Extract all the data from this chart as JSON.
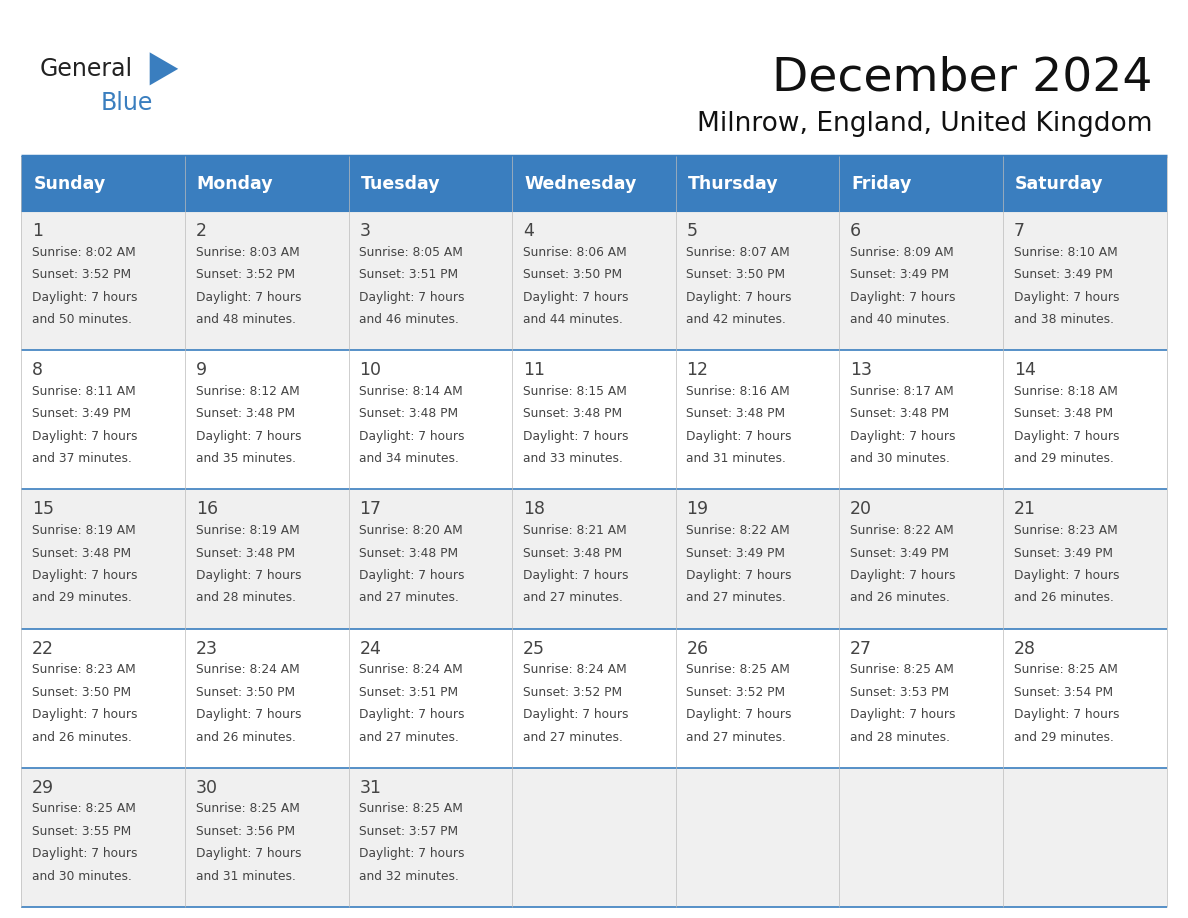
{
  "title": "December 2024",
  "subtitle": "Milnrow, England, United Kingdom",
  "days_of_week": [
    "Sunday",
    "Monday",
    "Tuesday",
    "Wednesday",
    "Thursday",
    "Friday",
    "Saturday"
  ],
  "header_bg": "#3a7ebf",
  "header_text_color": "#ffffff",
  "row_bg_odd": "#f0f0f0",
  "row_bg_even": "#ffffff",
  "border_color": "#3a7ebf",
  "text_color": "#444444",
  "title_color": "#111111",
  "logo_general_color": "#222222",
  "logo_blue_color": "#3a7ebf",
  "calendar_data": [
    {
      "day": 1,
      "col": 0,
      "row": 0,
      "sunrise": "8:02 AM",
      "sunset": "3:52 PM",
      "daylight_hours": 7,
      "daylight_minutes": 50
    },
    {
      "day": 2,
      "col": 1,
      "row": 0,
      "sunrise": "8:03 AM",
      "sunset": "3:52 PM",
      "daylight_hours": 7,
      "daylight_minutes": 48
    },
    {
      "day": 3,
      "col": 2,
      "row": 0,
      "sunrise": "8:05 AM",
      "sunset": "3:51 PM",
      "daylight_hours": 7,
      "daylight_minutes": 46
    },
    {
      "day": 4,
      "col": 3,
      "row": 0,
      "sunrise": "8:06 AM",
      "sunset": "3:50 PM",
      "daylight_hours": 7,
      "daylight_minutes": 44
    },
    {
      "day": 5,
      "col": 4,
      "row": 0,
      "sunrise": "8:07 AM",
      "sunset": "3:50 PM",
      "daylight_hours": 7,
      "daylight_minutes": 42
    },
    {
      "day": 6,
      "col": 5,
      "row": 0,
      "sunrise": "8:09 AM",
      "sunset": "3:49 PM",
      "daylight_hours": 7,
      "daylight_minutes": 40
    },
    {
      "day": 7,
      "col": 6,
      "row": 0,
      "sunrise": "8:10 AM",
      "sunset": "3:49 PM",
      "daylight_hours": 7,
      "daylight_minutes": 38
    },
    {
      "day": 8,
      "col": 0,
      "row": 1,
      "sunrise": "8:11 AM",
      "sunset": "3:49 PM",
      "daylight_hours": 7,
      "daylight_minutes": 37
    },
    {
      "day": 9,
      "col": 1,
      "row": 1,
      "sunrise": "8:12 AM",
      "sunset": "3:48 PM",
      "daylight_hours": 7,
      "daylight_minutes": 35
    },
    {
      "day": 10,
      "col": 2,
      "row": 1,
      "sunrise": "8:14 AM",
      "sunset": "3:48 PM",
      "daylight_hours": 7,
      "daylight_minutes": 34
    },
    {
      "day": 11,
      "col": 3,
      "row": 1,
      "sunrise": "8:15 AM",
      "sunset": "3:48 PM",
      "daylight_hours": 7,
      "daylight_minutes": 33
    },
    {
      "day": 12,
      "col": 4,
      "row": 1,
      "sunrise": "8:16 AM",
      "sunset": "3:48 PM",
      "daylight_hours": 7,
      "daylight_minutes": 31
    },
    {
      "day": 13,
      "col": 5,
      "row": 1,
      "sunrise": "8:17 AM",
      "sunset": "3:48 PM",
      "daylight_hours": 7,
      "daylight_minutes": 30
    },
    {
      "day": 14,
      "col": 6,
      "row": 1,
      "sunrise": "8:18 AM",
      "sunset": "3:48 PM",
      "daylight_hours": 7,
      "daylight_minutes": 29
    },
    {
      "day": 15,
      "col": 0,
      "row": 2,
      "sunrise": "8:19 AM",
      "sunset": "3:48 PM",
      "daylight_hours": 7,
      "daylight_minutes": 29
    },
    {
      "day": 16,
      "col": 1,
      "row": 2,
      "sunrise": "8:19 AM",
      "sunset": "3:48 PM",
      "daylight_hours": 7,
      "daylight_minutes": 28
    },
    {
      "day": 17,
      "col": 2,
      "row": 2,
      "sunrise": "8:20 AM",
      "sunset": "3:48 PM",
      "daylight_hours": 7,
      "daylight_minutes": 27
    },
    {
      "day": 18,
      "col": 3,
      "row": 2,
      "sunrise": "8:21 AM",
      "sunset": "3:48 PM",
      "daylight_hours": 7,
      "daylight_minutes": 27
    },
    {
      "day": 19,
      "col": 4,
      "row": 2,
      "sunrise": "8:22 AM",
      "sunset": "3:49 PM",
      "daylight_hours": 7,
      "daylight_minutes": 27
    },
    {
      "day": 20,
      "col": 5,
      "row": 2,
      "sunrise": "8:22 AM",
      "sunset": "3:49 PM",
      "daylight_hours": 7,
      "daylight_minutes": 26
    },
    {
      "day": 21,
      "col": 6,
      "row": 2,
      "sunrise": "8:23 AM",
      "sunset": "3:49 PM",
      "daylight_hours": 7,
      "daylight_minutes": 26
    },
    {
      "day": 22,
      "col": 0,
      "row": 3,
      "sunrise": "8:23 AM",
      "sunset": "3:50 PM",
      "daylight_hours": 7,
      "daylight_minutes": 26
    },
    {
      "day": 23,
      "col": 1,
      "row": 3,
      "sunrise": "8:24 AM",
      "sunset": "3:50 PM",
      "daylight_hours": 7,
      "daylight_minutes": 26
    },
    {
      "day": 24,
      "col": 2,
      "row": 3,
      "sunrise": "8:24 AM",
      "sunset": "3:51 PM",
      "daylight_hours": 7,
      "daylight_minutes": 27
    },
    {
      "day": 25,
      "col": 3,
      "row": 3,
      "sunrise": "8:24 AM",
      "sunset": "3:52 PM",
      "daylight_hours": 7,
      "daylight_minutes": 27
    },
    {
      "day": 26,
      "col": 4,
      "row": 3,
      "sunrise": "8:25 AM",
      "sunset": "3:52 PM",
      "daylight_hours": 7,
      "daylight_minutes": 27
    },
    {
      "day": 27,
      "col": 5,
      "row": 3,
      "sunrise": "8:25 AM",
      "sunset": "3:53 PM",
      "daylight_hours": 7,
      "daylight_minutes": 28
    },
    {
      "day": 28,
      "col": 6,
      "row": 3,
      "sunrise": "8:25 AM",
      "sunset": "3:54 PM",
      "daylight_hours": 7,
      "daylight_minutes": 29
    },
    {
      "day": 29,
      "col": 0,
      "row": 4,
      "sunrise": "8:25 AM",
      "sunset": "3:55 PM",
      "daylight_hours": 7,
      "daylight_minutes": 30
    },
    {
      "day": 30,
      "col": 1,
      "row": 4,
      "sunrise": "8:25 AM",
      "sunset": "3:56 PM",
      "daylight_hours": 7,
      "daylight_minutes": 31
    },
    {
      "day": 31,
      "col": 2,
      "row": 4,
      "sunrise": "8:25 AM",
      "sunset": "3:57 PM",
      "daylight_hours": 7,
      "daylight_minutes": 32
    }
  ],
  "num_rows": 5,
  "num_cols": 7,
  "figsize": [
    11.88,
    9.18
  ],
  "dpi": 100
}
